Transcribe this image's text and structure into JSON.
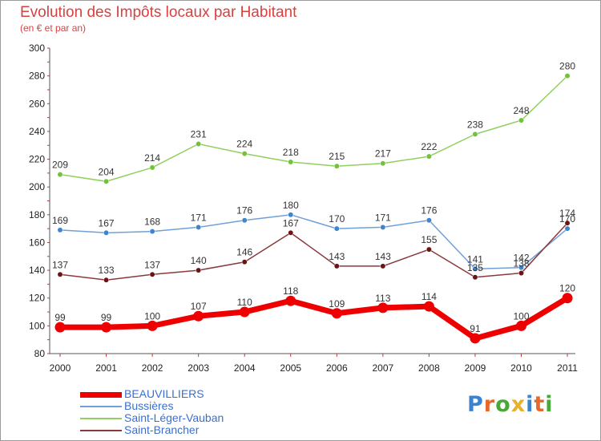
{
  "chart_data": {
    "type": "line",
    "title": "Evolution des Impôts locaux par Habitant",
    "subtitle": "(en € et par an)",
    "categories": [
      "2000",
      "2001",
      "2002",
      "2003",
      "2004",
      "2005",
      "2006",
      "2007",
      "2008",
      "2009",
      "2010",
      "2011"
    ],
    "ylim": [
      80,
      300
    ],
    "yticks": [
      80,
      100,
      120,
      140,
      160,
      180,
      200,
      220,
      240,
      260,
      280,
      300
    ],
    "grid": false,
    "legend_position": "bottom-left",
    "series": [
      {
        "name": "Saint-Léger-Vauban",
        "color": "#8fd060",
        "point_color": "#72c23a",
        "width": 1.5,
        "values": [
          209,
          204,
          214,
          231,
          224,
          218,
          215,
          217,
          222,
          238,
          248,
          280
        ]
      },
      {
        "name": "Bussières",
        "color": "#6fa0d8",
        "point_color": "#3d85cc",
        "width": 1.5,
        "values": [
          169,
          167,
          168,
          171,
          176,
          180,
          170,
          171,
          176,
          141,
          142,
          170
        ]
      },
      {
        "name": "Saint-Brancher",
        "color": "#8a3a3a",
        "point_color": "#6a1515",
        "width": 1.5,
        "values": [
          137,
          133,
          137,
          140,
          146,
          167,
          143,
          143,
          155,
          135,
          138,
          174
        ]
      },
      {
        "name": "BEAUVILLIERS",
        "color": "#ee0000",
        "point_color": "#ee0000",
        "width": 7,
        "values": [
          99,
          99,
          100,
          107,
          110,
          118,
          109,
          113,
          114,
          91,
          100,
          120
        ]
      }
    ],
    "legend_order": [
      "BEAUVILLIERS",
      "Bussières",
      "Saint-Léger-Vauban",
      "Saint-Brancher"
    ]
  },
  "logo": {
    "text": "Proxiti"
  }
}
